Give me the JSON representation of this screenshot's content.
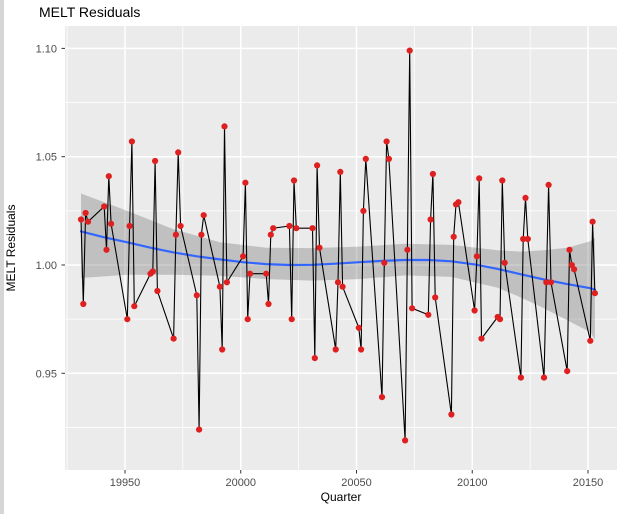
{
  "title": "MELT Residuals",
  "axes": {
    "x_label": "Quarter",
    "y_label": "MELT Residuals",
    "x_major_ticks": [
      {
        "v": 19950,
        "label": "19950"
      },
      {
        "v": 20000,
        "label": "20000"
      },
      {
        "v": 20050,
        "label": "20050"
      },
      {
        "v": 20100,
        "label": "20100"
      },
      {
        "v": 20150,
        "label": "20150"
      }
    ],
    "x_minor_ticks": [
      19925,
      19975,
      20025,
      20075,
      20125
    ],
    "y_major_ticks": [
      {
        "v": 0.95,
        "label": "0.95"
      },
      {
        "v": 1.0,
        "label": "1.00"
      },
      {
        "v": 1.05,
        "label": "1.05"
      },
      {
        "v": 1.1,
        "label": "1.10"
      }
    ],
    "y_minor_ticks": [
      0.925,
      0.975,
      1.025,
      1.075
    ]
  },
  "colors": {
    "panel_bg": "#EBEBEB",
    "grid": "#FFFFFF",
    "point": "#DE2020",
    "line": "#000000",
    "smooth": "#3366FF",
    "band": "rgba(105,105,105,0.33)",
    "tick_text": "#4d4d4d",
    "tick_mark": "#333333"
  },
  "chart_data": {
    "type": "scatter",
    "description": "Quarterly MELT residuals (points joined by black line) with loess smooth (blue) and confidence band (gray). X values are quarter codes YYYYQ.",
    "title": "MELT Residuals",
    "xlabel": "Quarter",
    "ylabel": "MELT Residuals",
    "xlim": [
      19924,
      20163
    ],
    "ylim": [
      0.905,
      1.111
    ],
    "grid": true,
    "legend": "none",
    "points": [
      [
        19931,
        1.021
      ],
      [
        19932,
        0.982
      ],
      [
        19933,
        1.024
      ],
      [
        19934,
        1.02
      ],
      [
        19941,
        1.027
      ],
      [
        19942,
        1.007
      ],
      [
        19943,
        1.041
      ],
      [
        19944,
        1.019
      ],
      [
        19951,
        0.975
      ],
      [
        19952,
        1.018
      ],
      [
        19953,
        1.057
      ],
      [
        19954,
        0.981
      ],
      [
        19961,
        0.996
      ],
      [
        19962,
        0.997
      ],
      [
        19963,
        1.048
      ],
      [
        19964,
        0.988
      ],
      [
        19971,
        0.966
      ],
      [
        19972,
        1.014
      ],
      [
        19973,
        1.052
      ],
      [
        19974,
        1.018
      ],
      [
        19981,
        0.986
      ],
      [
        19982,
        0.924
      ],
      [
        19983,
        1.014
      ],
      [
        19984,
        1.023
      ],
      [
        19991,
        0.99
      ],
      [
        19992,
        0.961
      ],
      [
        19993,
        1.064
      ],
      [
        19994,
        0.992
      ],
      [
        20001,
        1.004
      ],
      [
        20002,
        1.038
      ],
      [
        20003,
        0.975
      ],
      [
        20004,
        0.996
      ],
      [
        20011,
        0.996
      ],
      [
        20012,
        0.982
      ],
      [
        20013,
        1.014
      ],
      [
        20014,
        1.017
      ],
      [
        20021,
        1.018
      ],
      [
        20022,
        0.975
      ],
      [
        20023,
        1.039
      ],
      [
        20024,
        1.017
      ],
      [
        20031,
        1.017
      ],
      [
        20032,
        0.957
      ],
      [
        20033,
        1.046
      ],
      [
        20034,
        1.008
      ],
      [
        20041,
        0.961
      ],
      [
        20042,
        0.992
      ],
      [
        20043,
        1.043
      ],
      [
        20044,
        0.99
      ],
      [
        20051,
        0.971
      ],
      [
        20052,
        0.961
      ],
      [
        20053,
        1.025
      ],
      [
        20054,
        1.049
      ],
      [
        20061,
        0.939
      ],
      [
        20062,
        1.001
      ],
      [
        20063,
        1.057
      ],
      [
        20064,
        1.049
      ],
      [
        20071,
        0.919
      ],
      [
        20072,
        1.007
      ],
      [
        20073,
        1.099
      ],
      [
        20074,
        0.98
      ],
      [
        20081,
        0.977
      ],
      [
        20082,
        1.021
      ],
      [
        20083,
        1.042
      ],
      [
        20084,
        0.985
      ],
      [
        20091,
        0.931
      ],
      [
        20092,
        1.013
      ],
      [
        20093,
        1.028
      ],
      [
        20094,
        1.029
      ],
      [
        20101,
        0.979
      ],
      [
        20102,
        1.004
      ],
      [
        20103,
        1.04
      ],
      [
        20104,
        0.966
      ],
      [
        20111,
        0.976
      ],
      [
        20112,
        0.975
      ],
      [
        20113,
        1.039
      ],
      [
        20114,
        1.001
      ],
      [
        20121,
        0.948
      ],
      [
        20122,
        1.012
      ],
      [
        20123,
        1.031
      ],
      [
        20124,
        1.012
      ],
      [
        20131,
        0.948
      ],
      [
        20132,
        0.992
      ],
      [
        20133,
        1.037
      ],
      [
        20134,
        0.992
      ],
      [
        20141,
        0.951
      ],
      [
        20142,
        1.007
      ],
      [
        20143,
        1.0
      ],
      [
        20144,
        0.998
      ],
      [
        20151,
        0.965
      ],
      [
        20152,
        1.02
      ],
      [
        20153,
        0.987
      ]
    ],
    "smooth_line": [
      [
        19931,
        1.0155
      ],
      [
        19941,
        1.0128
      ],
      [
        19951,
        1.0105
      ],
      [
        19961,
        1.008
      ],
      [
        19971,
        1.0058
      ],
      [
        19981,
        1.004
      ],
      [
        19991,
        1.0026
      ],
      [
        20001,
        1.0013
      ],
      [
        20011,
        1.0004
      ],
      [
        20021,
        1.0
      ],
      [
        20031,
        1.0001
      ],
      [
        20041,
        1.0006
      ],
      [
        20051,
        1.0013
      ],
      [
        20061,
        1.0019
      ],
      [
        20071,
        1.0023
      ],
      [
        20081,
        1.0023
      ],
      [
        20091,
        1.0017
      ],
      [
        20101,
        1.0003
      ],
      [
        20111,
        0.9982
      ],
      [
        20121,
        0.9957
      ],
      [
        20131,
        0.9933
      ],
      [
        20141,
        0.9912
      ],
      [
        20151,
        0.9893
      ],
      [
        20153,
        0.9886
      ]
    ],
    "confidence_band": [
      [
        19931,
        1.033,
        0.994
      ],
      [
        19951,
        1.025,
        0.9955
      ],
      [
        19971,
        1.0165,
        0.9955
      ],
      [
        19991,
        1.0105,
        0.995
      ],
      [
        20011,
        1.008,
        0.9935
      ],
      [
        20031,
        1.0078,
        0.9928
      ],
      [
        20051,
        1.0085,
        0.9935
      ],
      [
        20071,
        1.0098,
        0.9952
      ],
      [
        20091,
        1.0093,
        0.9945
      ],
      [
        20111,
        1.0068,
        0.9895
      ],
      [
        20121,
        1.0062,
        0.985
      ],
      [
        20131,
        1.0068,
        0.98
      ],
      [
        20141,
        1.008,
        0.9745
      ],
      [
        20151,
        1.011,
        0.969
      ],
      [
        20153,
        1.0125,
        0.9655
      ]
    ]
  }
}
